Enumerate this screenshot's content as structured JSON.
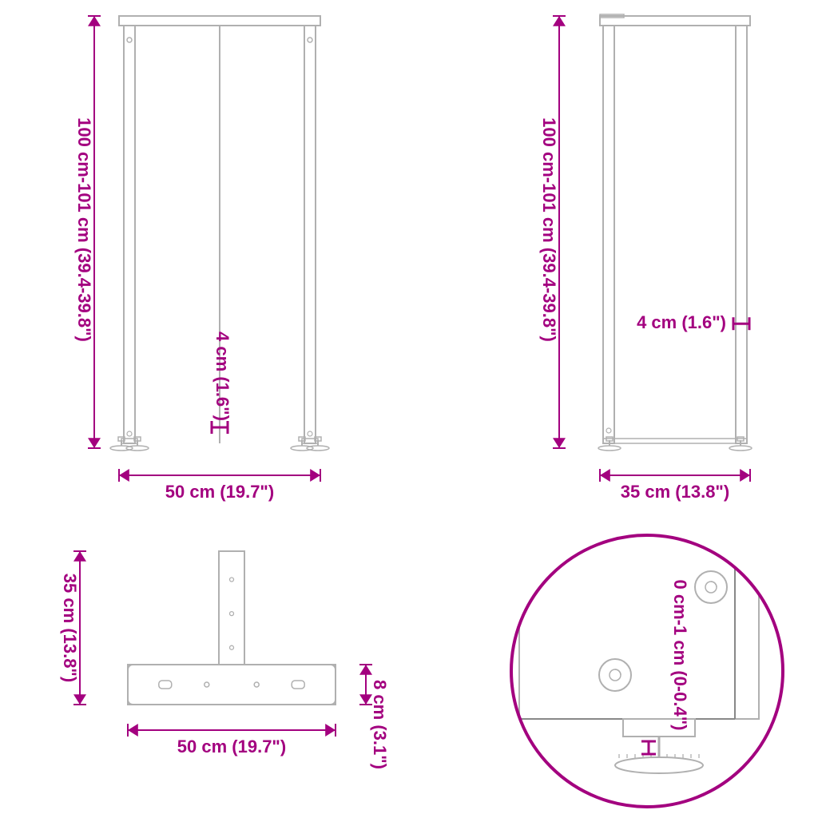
{
  "colors": {
    "dim": "#a3007f",
    "line": "#b0b0b0",
    "line_dark": "#888888",
    "bg": "#ffffff"
  },
  "font": {
    "dim_size": 22,
    "weight": "bold"
  },
  "views": {
    "front": {
      "height_label": "100 cm-101 cm (39.4-39.8\")",
      "width_label": "50 cm (19.7\")",
      "tube_label": "4 cm (1.6\")"
    },
    "side": {
      "height_label": "100 cm-101 cm (39.4-39.8\")",
      "width_label": "35 cm (13.8\")",
      "tube_label": "4 cm (1.6\")"
    },
    "top": {
      "depth_label": "35 cm (13.8\")",
      "width_label": "50 cm (19.7\")",
      "thick_label": "8 cm (3.1\")"
    },
    "detail": {
      "adjust_label": "0 cm-1 cm (0-0.4\")"
    }
  }
}
